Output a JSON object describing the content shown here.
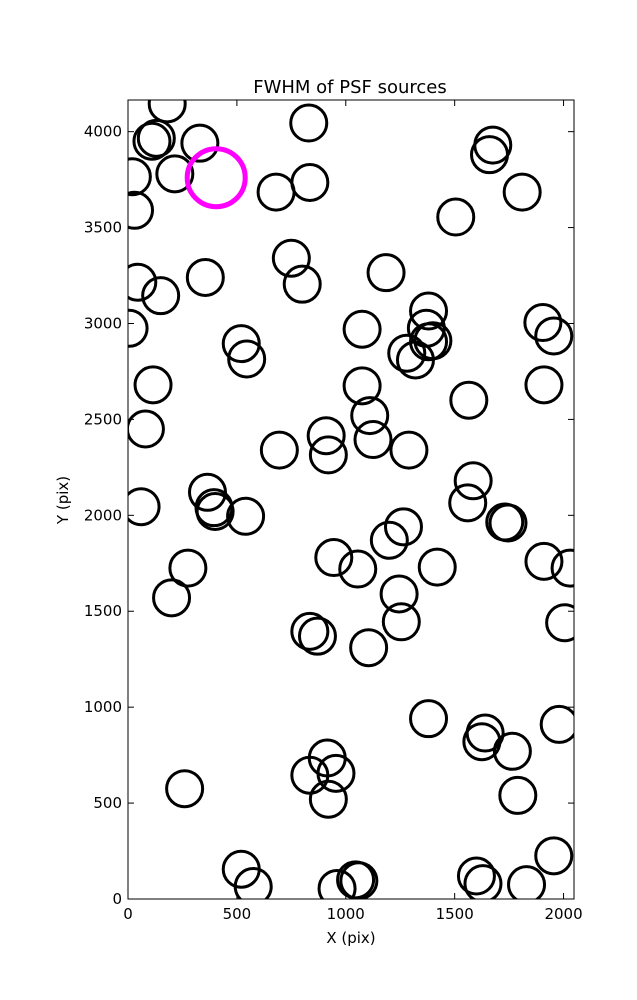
{
  "chart_data": {
    "type": "scatter",
    "title": "FWHM of PSF sources",
    "xlabel": "X (pix)",
    "ylabel": "Y (pix)",
    "xlim": [
      0,
      2048
    ],
    "ylim": [
      0,
      4165
    ],
    "xticks": [
      0,
      500,
      1000,
      1500,
      2000
    ],
    "yticks": [
      0,
      500,
      1000,
      1500,
      2000,
      2500,
      3000,
      3500,
      4000
    ],
    "grid": false,
    "marker": "open-circle",
    "colors": {
      "sources": "#000000",
      "highlight": "#ff00ff"
    },
    "series": [
      {
        "values": [
          {
            "x": 180,
            "y": 4145
          },
          {
            "x": 830,
            "y": 4045
          },
          {
            "x": 110,
            "y": 3950
          },
          {
            "x": 130,
            "y": 3965
          },
          {
            "x": 330,
            "y": 3940
          },
          {
            "x": 1675,
            "y": 3930
          },
          {
            "x": 1660,
            "y": 3880
          },
          {
            "x": 20,
            "y": 3765
          },
          {
            "x": 215,
            "y": 3780
          },
          {
            "x": 835,
            "y": 3735
          },
          {
            "x": 680,
            "y": 3685
          },
          {
            "x": 1810,
            "y": 3685
          },
          {
            "x": 30,
            "y": 3590
          },
          {
            "x": 1505,
            "y": 3555
          },
          {
            "x": 750,
            "y": 3340
          },
          {
            "x": 1185,
            "y": 3265
          },
          {
            "x": 45,
            "y": 3215
          },
          {
            "x": 355,
            "y": 3240
          },
          {
            "x": 800,
            "y": 3205
          },
          {
            "x": 150,
            "y": 3145
          },
          {
            "x": 1380,
            "y": 3065
          },
          {
            "x": 5,
            "y": 2975
          },
          {
            "x": 1075,
            "y": 2970
          },
          {
            "x": 1370,
            "y": 2975
          },
          {
            "x": 1400,
            "y": 2910
          },
          {
            "x": 1380,
            "y": 2905
          },
          {
            "x": 1905,
            "y": 3005
          },
          {
            "x": 1955,
            "y": 2935
          },
          {
            "x": 520,
            "y": 2895
          },
          {
            "x": 545,
            "y": 2815
          },
          {
            "x": 1280,
            "y": 2845
          },
          {
            "x": 1320,
            "y": 2810
          },
          {
            "x": 115,
            "y": 2680
          },
          {
            "x": 1075,
            "y": 2675
          },
          {
            "x": 1910,
            "y": 2680
          },
          {
            "x": 1565,
            "y": 2600
          },
          {
            "x": 1110,
            "y": 2520
          },
          {
            "x": 80,
            "y": 2450
          },
          {
            "x": 910,
            "y": 2415
          },
          {
            "x": 1125,
            "y": 2395
          },
          {
            "x": 920,
            "y": 2315
          },
          {
            "x": 695,
            "y": 2340
          },
          {
            "x": 1290,
            "y": 2340
          },
          {
            "x": 1585,
            "y": 2180
          },
          {
            "x": 365,
            "y": 2120
          },
          {
            "x": 1560,
            "y": 2065
          },
          {
            "x": 60,
            "y": 2045
          },
          {
            "x": 395,
            "y": 2040
          },
          {
            "x": 400,
            "y": 2020
          },
          {
            "x": 540,
            "y": 1995
          },
          {
            "x": 1265,
            "y": 1940
          },
          {
            "x": 1730,
            "y": 1965
          },
          {
            "x": 1745,
            "y": 1960
          },
          {
            "x": 1200,
            "y": 1870
          },
          {
            "x": 945,
            "y": 1780
          },
          {
            "x": 1055,
            "y": 1720
          },
          {
            "x": 1420,
            "y": 1730
          },
          {
            "x": 1910,
            "y": 1760
          },
          {
            "x": 2030,
            "y": 1725
          },
          {
            "x": 275,
            "y": 1725
          },
          {
            "x": 200,
            "y": 1570
          },
          {
            "x": 1245,
            "y": 1590
          },
          {
            "x": 1255,
            "y": 1445
          },
          {
            "x": 2005,
            "y": 1440
          },
          {
            "x": 835,
            "y": 1395
          },
          {
            "x": 870,
            "y": 1370
          },
          {
            "x": 1105,
            "y": 1310
          },
          {
            "x": 1380,
            "y": 940
          },
          {
            "x": 1640,
            "y": 865
          },
          {
            "x": 1625,
            "y": 820
          },
          {
            "x": 1765,
            "y": 770
          },
          {
            "x": 1980,
            "y": 910
          },
          {
            "x": 915,
            "y": 735
          },
          {
            "x": 835,
            "y": 645
          },
          {
            "x": 955,
            "y": 655
          },
          {
            "x": 260,
            "y": 575
          },
          {
            "x": 920,
            "y": 520
          },
          {
            "x": 1790,
            "y": 540
          },
          {
            "x": 1955,
            "y": 225
          },
          {
            "x": 520,
            "y": 155
          },
          {
            "x": 575,
            "y": 65
          },
          {
            "x": 960,
            "y": 55
          },
          {
            "x": 1045,
            "y": 100
          },
          {
            "x": 1060,
            "y": 95
          },
          {
            "x": 1600,
            "y": 120
          },
          {
            "x": 1630,
            "y": 80
          },
          {
            "x": 1830,
            "y": 75
          }
        ]
      },
      {
        "values": [
          {
            "x": 405,
            "y": 3760
          }
        ]
      }
    ]
  }
}
